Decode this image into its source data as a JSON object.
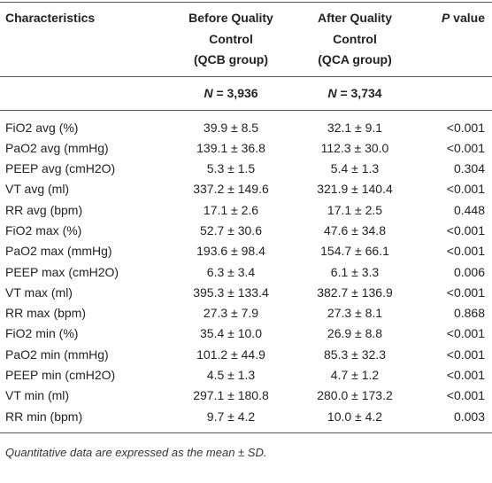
{
  "table": {
    "header": [
      [
        "Characteristics"
      ],
      [
        "Before Quality",
        "Control",
        "(QCB group)"
      ],
      [
        "After Quality",
        "Control",
        "(QCA group)"
      ],
      [
        {
          "italic": "P",
          "text": " value"
        }
      ]
    ],
    "counts": [
      {
        "italic": "N",
        "text": " = 3,936"
      },
      {
        "italic": "N",
        "text": " = 3,734"
      }
    ],
    "rows": [
      [
        "FiO2 avg (%)",
        "39.9 ± 8.5",
        "32.1 ± 9.1",
        "<0.001"
      ],
      [
        "PaO2 avg (mmHg)",
        "139.1 ± 36.8",
        "112.3 ± 30.0",
        "<0.001"
      ],
      [
        "PEEP avg (cmH2O)",
        "5.3 ± 1.5",
        "5.4 ± 1.3",
        "0.304"
      ],
      [
        "VT avg (ml)",
        "337.2 ± 149.6",
        "321.9 ± 140.4",
        "<0.001"
      ],
      [
        "RR avg (bpm)",
        "17.1 ± 2.6",
        "17.1 ± 2.5",
        "0.448"
      ],
      [
        "FiO2 max (%)",
        "52.7 ± 30.6",
        "47.6 ± 34.8",
        "<0.001"
      ],
      [
        "PaO2 max (mmHg)",
        "193.6 ± 98.4",
        "154.7 ± 66.1",
        "<0.001"
      ],
      [
        "PEEP max (cmH2O)",
        "6.3 ± 3.4",
        "6.1 ± 3.3",
        "0.006"
      ],
      [
        "VT max (ml)",
        "395.3 ± 133.4",
        "382.7 ± 136.9",
        "<0.001"
      ],
      [
        "RR max (bpm)",
        "27.3 ± 7.9",
        "27.3 ± 8.1",
        "0.868"
      ],
      [
        "FiO2 min (%)",
        "35.4 ± 10.0",
        "26.9 ± 8.8",
        "<0.001"
      ],
      [
        "PaO2 min (mmHg)",
        "101.2 ± 44.9",
        "85.3 ± 32.3",
        "<0.001"
      ],
      [
        "PEEP min (cmH2O)",
        "4.5 ± 1.3",
        "4.7 ± 1.2",
        "<0.001"
      ],
      [
        "VT min (ml)",
        "297.1 ± 180.8",
        "280.0 ± 173.2",
        "<0.001"
      ],
      [
        "RR min (bpm)",
        "9.7 ± 4.2",
        "10.0 ± 4.2",
        "0.003"
      ]
    ],
    "footnote": "Quantitative data are expressed as the mean ± SD."
  }
}
